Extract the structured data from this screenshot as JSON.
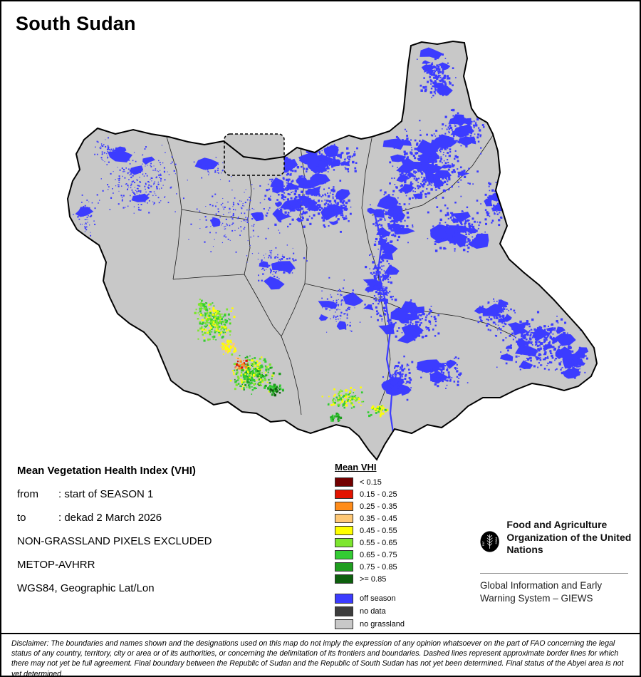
{
  "title": "South Sudan",
  "info": {
    "heading": "Mean Vegetation Health Index (VHI)",
    "lines": [
      {
        "label": "from",
        "value": ": start of SEASON 1"
      },
      {
        "label": "to",
        "value": ": dekad 2 March 2026"
      }
    ],
    "extra_lines": [
      "NON-GRASSLAND PIXELS EXCLUDED",
      "METOP-AVHRR",
      "WGS84, Geographic Lat/Lon"
    ]
  },
  "legend": {
    "title": "Mean VHI",
    "classes": [
      {
        "label": "< 0.15",
        "color": "#730000"
      },
      {
        "label": "0.15 - 0.25",
        "color": "#E31400"
      },
      {
        "label": "0.25 - 0.35",
        "color": "#FF8C1A"
      },
      {
        "label": "0.35 - 0.45",
        "color": "#FFC875"
      },
      {
        "label": "0.45 - 0.55",
        "color": "#FFFF00"
      },
      {
        "label": "0.55 - 0.65",
        "color": "#7DE62E"
      },
      {
        "label": "0.65 - 0.75",
        "color": "#33CC33"
      },
      {
        "label": "0.75 - 0.85",
        "color": "#1F9E1F"
      },
      {
        "label": ">= 0.85",
        "color": "#0D5F0D"
      }
    ],
    "other_classes": [
      {
        "label": "off season",
        "color": "#3C3CFF"
      },
      {
        "label": "no data",
        "color": "#3D3D3D"
      },
      {
        "label": "no grassland",
        "color": "#C8C8C8"
      }
    ]
  },
  "fao": {
    "motto_left": "FIAT",
    "motto_right": "PANIS",
    "org_name": "Food and Agriculture Organization of the United Nations",
    "giews": "Global Information and Early Warning System – GIEWS"
  },
  "footer": {
    "disclaimer": "Disclaimer: The boundaries and names shown and the designations used on this map do not imply the expression of any opinion whatsoever on the part of FAO concerning the legal status of any country, territory, city or area or of its authorities, or concerning the delimitation of its frontiers and boundaries. Dashed lines represent approximate border lines for which there may not yet be full agreement.  Final boundary between the Republic of Sudan and the Republic of South Sudan has not yet been determined. Final status of the Abyei area is not yet determined."
  }
}
